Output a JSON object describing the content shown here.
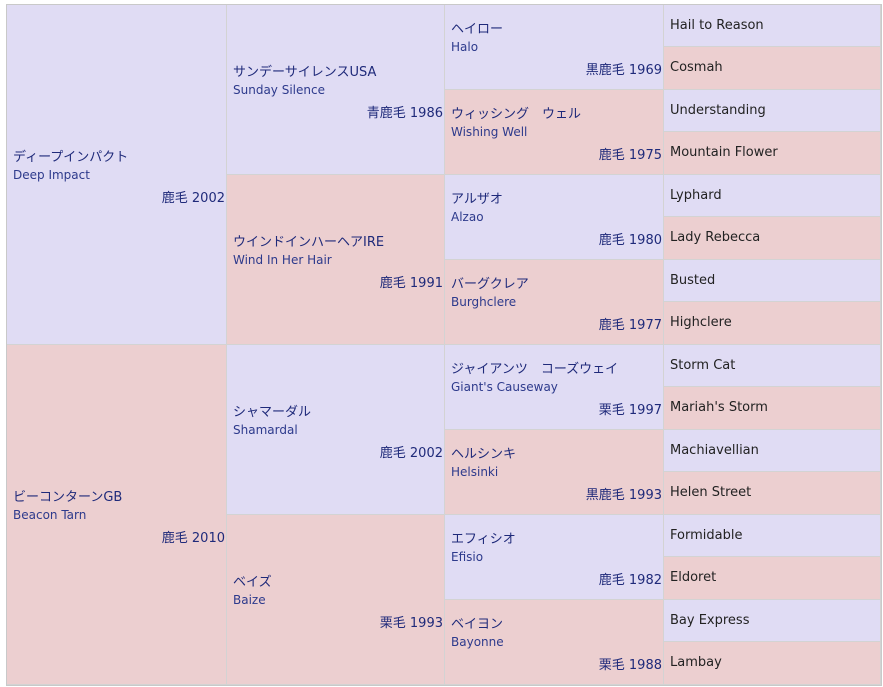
{
  "sire": {
    "jp": "ディープインパクト",
    "en": "Deep Impact",
    "meta": "鹿毛 2002",
    "sire": {
      "jp": "サンデーサイレンスUSA",
      "en": "Sunday Silence",
      "meta": "青鹿毛 1986",
      "sire": {
        "jp": "ヘイロー",
        "en": "Halo",
        "meta": "黒鹿毛 1969",
        "sire": "Hail to Reason",
        "dam": "Cosmah"
      },
      "dam": {
        "jp": "ウィッシング　ウェル",
        "en": "Wishing Well",
        "meta": "鹿毛 1975",
        "sire": "Understanding",
        "dam": "Mountain Flower"
      }
    },
    "dam": {
      "jp": "ウインドインハーヘアIRE",
      "en": "Wind In Her Hair",
      "meta": "鹿毛 1991",
      "sire": {
        "jp": "アルザオ",
        "en": "Alzao",
        "meta": "鹿毛 1980",
        "sire": "Lyphard",
        "dam": "Lady Rebecca"
      },
      "dam": {
        "jp": "バーグクレア",
        "en": "Burghclere",
        "meta": "鹿毛 1977",
        "sire": "Busted",
        "dam": "Highclere"
      }
    }
  },
  "dam": {
    "jp": "ビーコンターンGB",
    "en": "Beacon Tarn",
    "meta": "鹿毛 2010",
    "sire": {
      "jp": "シャマーダル",
      "en": "Shamardal",
      "meta": "鹿毛 2002",
      "sire": {
        "jp": "ジャイアンツ　コーズウェイ",
        "en": "Giant's Causeway",
        "meta": "栗毛 1997",
        "sire": "Storm Cat",
        "dam": "Mariah's Storm"
      },
      "dam": {
        "jp": "ヘルシンキ",
        "en": "Helsinki",
        "meta": "黒鹿毛 1993",
        "sire": "Machiavellian",
        "dam": "Helen Street"
      }
    },
    "dam": {
      "jp": "ベイズ",
      "en": "Baize",
      "meta": "栗毛 1993",
      "sire": {
        "jp": "エフィシオ",
        "en": "Efisio",
        "meta": "鹿毛 1982",
        "sire": "Formidable",
        "dam": "Eldoret"
      },
      "dam": {
        "jp": "ベイヨン",
        "en": "Bayonne",
        "meta": "栗毛 1988",
        "sire": "Bay Express",
        "dam": "Lambay"
      }
    }
  },
  "colors": {
    "male": "#e0dcf4",
    "female": "#eccfd0"
  }
}
